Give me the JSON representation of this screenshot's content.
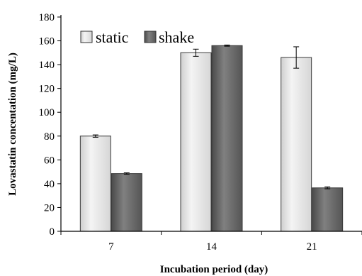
{
  "chart_data": {
    "type": "bar",
    "categories": [
      "7",
      "14",
      "21"
    ],
    "series": [
      {
        "name": "static",
        "values": [
          80,
          150,
          146
        ],
        "errors": [
          1,
          3,
          9
        ],
        "color": "#e3e3e3"
      },
      {
        "name": "shake",
        "values": [
          48.5,
          156,
          36.5
        ],
        "errors": [
          0.6,
          0.5,
          0.8
        ],
        "color": "#6e6e6e"
      }
    ],
    "xlabel": "Incubation period (day)",
    "ylabel": "Lovastatin concentation (mg/L)",
    "ylim": [
      0,
      180
    ],
    "yticks": [
      0,
      20,
      40,
      60,
      80,
      100,
      120,
      140,
      160,
      180
    ],
    "legend": "top-left",
    "grid": false
  }
}
